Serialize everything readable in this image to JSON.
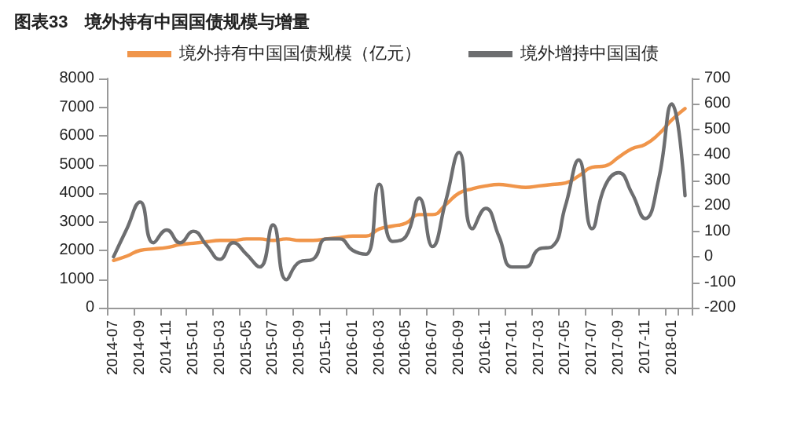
{
  "chart_data": {
    "type": "line",
    "title": "图表33　境外持有中国国债规模与增量",
    "categories": [
      "2014-07",
      null,
      "2014-09",
      null,
      "2014-11",
      null,
      "2015-01",
      null,
      "2015-03",
      null,
      "2015-05",
      null,
      "2015-07",
      null,
      "2015-09",
      null,
      "2015-11",
      null,
      "2016-01",
      null,
      "2016-03",
      null,
      "2016-05",
      null,
      "2016-07",
      null,
      "2016-09",
      null,
      "2016-11",
      null,
      "2017-01",
      null,
      "2017-03",
      null,
      "2017-05",
      null,
      "2017-07",
      null,
      "2017-09",
      null,
      "2017-11",
      null,
      "2018-01",
      null
    ],
    "series": [
      {
        "name": "境外持有中国国债规模（亿元）",
        "color": "#f0954a",
        "values": [
          1650,
          1800,
          2000,
          2050,
          2100,
          2200,
          2250,
          2300,
          2350,
          2350,
          2400,
          2400,
          2350,
          2400,
          2350,
          2350,
          2400,
          2450,
          2500,
          2500,
          2750,
          2850,
          2950,
          3250,
          3250,
          3600,
          4000,
          4150,
          4250,
          4300,
          4250,
          4200,
          4250,
          4300,
          4350,
          4600,
          4900,
          4950,
          5250,
          5550,
          5700,
          6050,
          6550,
          6950
        ]
      },
      {
        "name": "境外增持中国国债",
        "color": "#6d6e70",
        "axis": "y2",
        "values": [
          0,
          110,
          215,
          55,
          105,
          55,
          100,
          45,
          -10,
          55,
          10,
          -40,
          125,
          -90,
          -20,
          -10,
          70,
          70,
          25,
          10,
          285,
          60,
          80,
          230,
          40,
          220,
          410,
          110,
          190,
          80,
          -40,
          -40,
          30,
          40,
          200,
          380,
          110,
          280,
          330,
          250,
          150,
          300,
          600,
          240
        ]
      }
    ],
    "ylim": [
      0,
      8000
    ],
    "yticks": [
      0,
      1000,
      2000,
      3000,
      4000,
      5000,
      6000,
      7000,
      8000
    ],
    "y2lim": [
      -200,
      700
    ],
    "y2ticks": [
      -200,
      -100,
      0,
      100,
      200,
      300,
      400,
      500,
      600,
      700
    ],
    "legend": "top",
    "grid": false,
    "marker": "none",
    "line_style": "solid"
  }
}
